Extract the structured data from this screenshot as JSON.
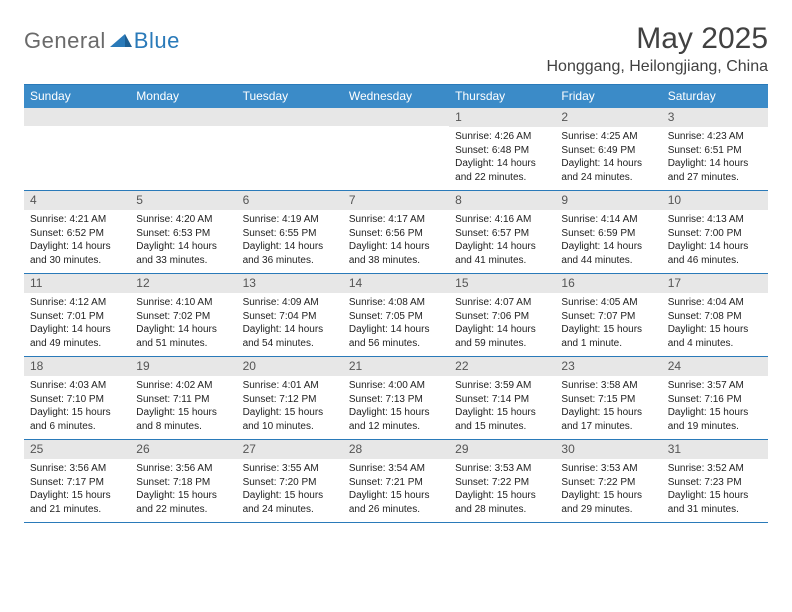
{
  "logo": {
    "text1": "General",
    "text2": "Blue"
  },
  "title": "May 2025",
  "location": "Honggang, Heilongjiang, China",
  "colors": {
    "header_bg": "#3b8bc8",
    "header_text": "#ffffff",
    "rule": "#2a7ab9",
    "daynum_bg": "#e7e7e7",
    "daynum_text": "#555555",
    "logo_gray": "#6a6a6a",
    "logo_blue": "#2a7ab9",
    "title_color": "#414141"
  },
  "day_names": [
    "Sunday",
    "Monday",
    "Tuesday",
    "Wednesday",
    "Thursday",
    "Friday",
    "Saturday"
  ],
  "weeks": [
    [
      {
        "blank": true
      },
      {
        "blank": true
      },
      {
        "blank": true
      },
      {
        "blank": true
      },
      {
        "n": "1",
        "sr": "4:26 AM",
        "ss": "6:48 PM",
        "dl": "14 hours and 22 minutes."
      },
      {
        "n": "2",
        "sr": "4:25 AM",
        "ss": "6:49 PM",
        "dl": "14 hours and 24 minutes."
      },
      {
        "n": "3",
        "sr": "4:23 AM",
        "ss": "6:51 PM",
        "dl": "14 hours and 27 minutes."
      }
    ],
    [
      {
        "n": "4",
        "sr": "4:21 AM",
        "ss": "6:52 PM",
        "dl": "14 hours and 30 minutes."
      },
      {
        "n": "5",
        "sr": "4:20 AM",
        "ss": "6:53 PM",
        "dl": "14 hours and 33 minutes."
      },
      {
        "n": "6",
        "sr": "4:19 AM",
        "ss": "6:55 PM",
        "dl": "14 hours and 36 minutes."
      },
      {
        "n": "7",
        "sr": "4:17 AM",
        "ss": "6:56 PM",
        "dl": "14 hours and 38 minutes."
      },
      {
        "n": "8",
        "sr": "4:16 AM",
        "ss": "6:57 PM",
        "dl": "14 hours and 41 minutes."
      },
      {
        "n": "9",
        "sr": "4:14 AM",
        "ss": "6:59 PM",
        "dl": "14 hours and 44 minutes."
      },
      {
        "n": "10",
        "sr": "4:13 AM",
        "ss": "7:00 PM",
        "dl": "14 hours and 46 minutes."
      }
    ],
    [
      {
        "n": "11",
        "sr": "4:12 AM",
        "ss": "7:01 PM",
        "dl": "14 hours and 49 minutes."
      },
      {
        "n": "12",
        "sr": "4:10 AM",
        "ss": "7:02 PM",
        "dl": "14 hours and 51 minutes."
      },
      {
        "n": "13",
        "sr": "4:09 AM",
        "ss": "7:04 PM",
        "dl": "14 hours and 54 minutes."
      },
      {
        "n": "14",
        "sr": "4:08 AM",
        "ss": "7:05 PM",
        "dl": "14 hours and 56 minutes."
      },
      {
        "n": "15",
        "sr": "4:07 AM",
        "ss": "7:06 PM",
        "dl": "14 hours and 59 minutes."
      },
      {
        "n": "16",
        "sr": "4:05 AM",
        "ss": "7:07 PM",
        "dl": "15 hours and 1 minute."
      },
      {
        "n": "17",
        "sr": "4:04 AM",
        "ss": "7:08 PM",
        "dl": "15 hours and 4 minutes."
      }
    ],
    [
      {
        "n": "18",
        "sr": "4:03 AM",
        "ss": "7:10 PM",
        "dl": "15 hours and 6 minutes."
      },
      {
        "n": "19",
        "sr": "4:02 AM",
        "ss": "7:11 PM",
        "dl": "15 hours and 8 minutes."
      },
      {
        "n": "20",
        "sr": "4:01 AM",
        "ss": "7:12 PM",
        "dl": "15 hours and 10 minutes."
      },
      {
        "n": "21",
        "sr": "4:00 AM",
        "ss": "7:13 PM",
        "dl": "15 hours and 12 minutes."
      },
      {
        "n": "22",
        "sr": "3:59 AM",
        "ss": "7:14 PM",
        "dl": "15 hours and 15 minutes."
      },
      {
        "n": "23",
        "sr": "3:58 AM",
        "ss": "7:15 PM",
        "dl": "15 hours and 17 minutes."
      },
      {
        "n": "24",
        "sr": "3:57 AM",
        "ss": "7:16 PM",
        "dl": "15 hours and 19 minutes."
      }
    ],
    [
      {
        "n": "25",
        "sr": "3:56 AM",
        "ss": "7:17 PM",
        "dl": "15 hours and 21 minutes."
      },
      {
        "n": "26",
        "sr": "3:56 AM",
        "ss": "7:18 PM",
        "dl": "15 hours and 22 minutes."
      },
      {
        "n": "27",
        "sr": "3:55 AM",
        "ss": "7:20 PM",
        "dl": "15 hours and 24 minutes."
      },
      {
        "n": "28",
        "sr": "3:54 AM",
        "ss": "7:21 PM",
        "dl": "15 hours and 26 minutes."
      },
      {
        "n": "29",
        "sr": "3:53 AM",
        "ss": "7:22 PM",
        "dl": "15 hours and 28 minutes."
      },
      {
        "n": "30",
        "sr": "3:53 AM",
        "ss": "7:22 PM",
        "dl": "15 hours and 29 minutes."
      },
      {
        "n": "31",
        "sr": "3:52 AM",
        "ss": "7:23 PM",
        "dl": "15 hours and 31 minutes."
      }
    ]
  ],
  "labels": {
    "sunrise": "Sunrise:",
    "sunset": "Sunset:",
    "daylight": "Daylight:"
  }
}
